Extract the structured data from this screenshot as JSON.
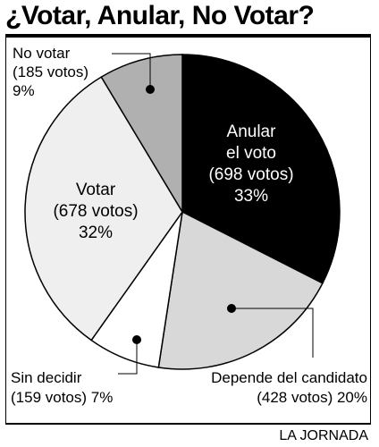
{
  "header": {
    "title": "¿Votar, Anular, No Votar?"
  },
  "footer": {
    "credit": "LA JORNADA"
  },
  "chart_data": {
    "type": "pie",
    "title": "¿Votar, Anular, No Votar?",
    "slices": [
      {
        "name": "Anular el voto",
        "votes": 698,
        "percent": 33,
        "color": "#000000",
        "label_lines": [
          "Anular",
          "el voto",
          "(698 votos)",
          "33%"
        ]
      },
      {
        "name": "Depende del candidato",
        "votes": 428,
        "percent": 20,
        "color": "#d8d8d8",
        "label_lines": [
          "Depende del candidato",
          "(428 votos) 20%"
        ]
      },
      {
        "name": "Sin decidir",
        "votes": 159,
        "percent": 7,
        "color": "#ffffff",
        "label_lines": [
          "Sin decidir",
          "(159 votos) 7%"
        ]
      },
      {
        "name": "Votar",
        "votes": 678,
        "percent": 32,
        "color": "#efefef",
        "label_lines": [
          "Votar",
          "(678 votos)",
          "32%"
        ]
      },
      {
        "name": "No votar",
        "votes": 185,
        "percent": 9,
        "color": "#b0b0b0",
        "label_lines": [
          "No votar",
          "(185 votos)",
          "9%"
        ]
      }
    ]
  }
}
